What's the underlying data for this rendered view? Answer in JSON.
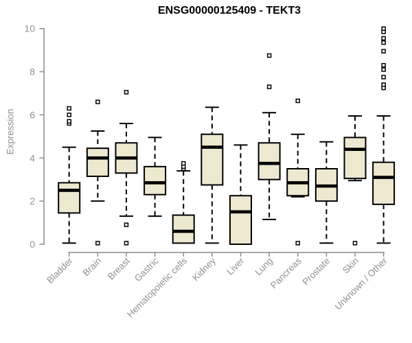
{
  "chart_data": {
    "type": "boxplot",
    "title": "ENSG00000125409 - TEKT3",
    "ylabel": "Expression",
    "xlabel": "",
    "ylim": [
      0,
      10
    ],
    "yticks": [
      0,
      2,
      4,
      6,
      8,
      10
    ],
    "grid": false,
    "legend": "none",
    "colors": {
      "box_fill": "#EDE8D0",
      "box_border": "#000000",
      "median": "#000000",
      "whisker": "#000000",
      "outlier_border": "#000000",
      "outlier_fill": "#FFFFFF",
      "axis": "#8C8C8C",
      "tick_text": "#919191",
      "title_text": "#000000",
      "background": "#FFFFFF"
    },
    "categories": [
      "Bladder",
      "Brain",
      "Breast",
      "Gastric",
      "Hematopoietic cells",
      "Kidney",
      "Liver",
      "Lung",
      "Pancreas",
      "Prostate",
      "Skin",
      "Unknown / Other"
    ],
    "boxes": [
      {
        "category": "Bladder",
        "whisker_low": 0.05,
        "q1": 1.45,
        "median": 2.5,
        "q3": 2.85,
        "whisker_high": 4.5,
        "outliers": [
          5.6,
          5.7,
          6.0,
          6.3
        ]
      },
      {
        "category": "Brain",
        "whisker_low": 2.0,
        "q1": 3.15,
        "median": 4.0,
        "q3": 4.45,
        "whisker_high": 5.25,
        "outliers": [
          0.05,
          6.6
        ]
      },
      {
        "category": "Breast",
        "whisker_low": 1.3,
        "q1": 3.3,
        "median": 4.0,
        "q3": 4.7,
        "whisker_high": 5.6,
        "outliers": [
          0.05,
          0.9,
          7.05
        ]
      },
      {
        "category": "Gastric",
        "whisker_low": 1.3,
        "q1": 2.3,
        "median": 2.85,
        "q3": 3.6,
        "whisker_high": 4.95,
        "outliers": []
      },
      {
        "category": "Hematopoietic cells",
        "whisker_low": 0.05,
        "q1": 0.05,
        "median": 0.6,
        "q3": 1.35,
        "whisker_high": 3.4,
        "outliers": [
          3.5,
          3.6,
          3.75
        ]
      },
      {
        "category": "Kidney",
        "whisker_low": 0.05,
        "q1": 2.75,
        "median": 4.5,
        "q3": 5.1,
        "whisker_high": 6.35,
        "outliers": []
      },
      {
        "category": "Liver",
        "whisker_low": 0.0,
        "q1": 0.0,
        "median": 1.5,
        "q3": 2.25,
        "whisker_high": 4.6,
        "outliers": []
      },
      {
        "category": "Lung",
        "whisker_low": 1.15,
        "q1": 3.0,
        "median": 3.75,
        "q3": 4.7,
        "whisker_high": 6.1,
        "outliers": [
          7.3,
          8.75
        ]
      },
      {
        "category": "Pancreas",
        "whisker_low": 2.2,
        "q1": 2.25,
        "median": 2.85,
        "q3": 3.5,
        "whisker_high": 5.1,
        "outliers": [
          0.05,
          6.65
        ]
      },
      {
        "category": "Prostate",
        "whisker_low": 0.05,
        "q1": 2.0,
        "median": 2.7,
        "q3": 3.5,
        "whisker_high": 4.75,
        "outliers": []
      },
      {
        "category": "Skin",
        "whisker_low": 2.95,
        "q1": 3.05,
        "median": 4.4,
        "q3": 4.95,
        "whisker_high": 5.95,
        "outliers": [
          0.05
        ]
      },
      {
        "category": "Unknown / Other",
        "whisker_low": 0.05,
        "q1": 1.85,
        "median": 3.1,
        "q3": 3.8,
        "whisker_high": 5.95,
        "outliers": [
          7.25,
          7.4,
          7.75,
          8.1,
          8.3,
          8.95,
          9.35,
          9.55,
          9.85,
          10.0
        ]
      }
    ]
  }
}
